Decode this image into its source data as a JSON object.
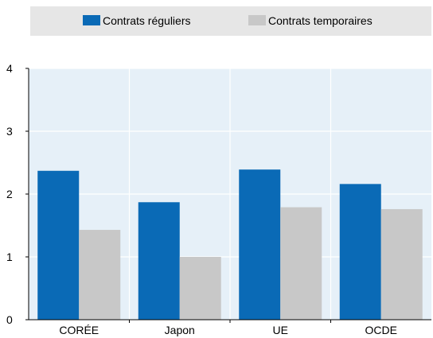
{
  "chart_data": {
    "type": "bar",
    "categories": [
      "CORÉE",
      "Japon",
      "UE",
      "OCDE"
    ],
    "series": [
      {
        "name": "Contrats réguliers",
        "color": "#0a6ab6",
        "values": [
          2.37,
          1.87,
          2.39,
          2.16
        ]
      },
      {
        "name": "Contrats temporaires",
        "color": "#c8c8c8",
        "values": [
          1.43,
          1.0,
          1.79,
          1.76
        ]
      }
    ],
    "yticks": [
      "0",
      "1",
      "2",
      "3",
      "4"
    ],
    "ylim": [
      0,
      4
    ],
    "grid": true,
    "legend_position": "top",
    "plot_background": "#e6f0f8"
  }
}
